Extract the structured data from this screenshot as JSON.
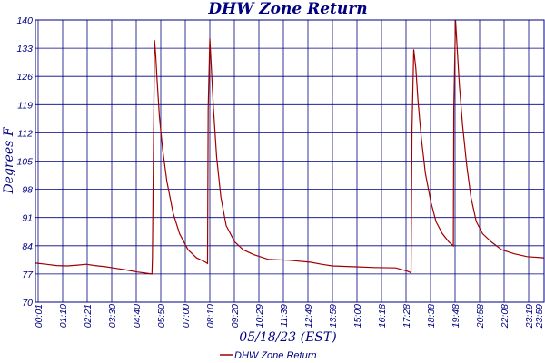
{
  "chart_data": {
    "type": "line",
    "title": "DHW Zone Return",
    "xlabel": "05/18/23 (EST)",
    "ylabel": "Degrees F",
    "ylim": [
      70,
      140
    ],
    "y_ticks": [
      70,
      77,
      84,
      91,
      98,
      105,
      112,
      119,
      126,
      133,
      140
    ],
    "x_tick_labels": [
      "00:01",
      "01:10",
      "02:21",
      "03:30",
      "04:40",
      "05:50",
      "07:00",
      "08:10",
      "09:20",
      "10:29",
      "11:39",
      "12:49",
      "13:59",
      "15:00",
      "16:18",
      "17:28",
      "18:38",
      "19:48",
      "20:58",
      "22:08",
      "23:19",
      "23:59"
    ],
    "grid": true,
    "legend_position": "bottom-center",
    "colors": {
      "series": "#a00000",
      "grid": "#000080",
      "text": "#000080"
    },
    "series": [
      {
        "name": "DHW Zone Return",
        "points": [
          [
            0.0,
            79.7
          ],
          [
            0.5,
            79.4
          ],
          [
            1.0,
            79.1
          ],
          [
            1.5,
            79.0
          ],
          [
            2.0,
            79.2
          ],
          [
            2.4,
            79.4
          ],
          [
            2.8,
            79.1
          ],
          [
            3.3,
            78.8
          ],
          [
            3.8,
            78.4
          ],
          [
            4.3,
            78.0
          ],
          [
            4.8,
            77.5
          ],
          [
            5.5,
            77.0
          ],
          [
            5.52,
            81.0
          ],
          [
            5.62,
            135.0
          ],
          [
            5.68,
            131.0
          ],
          [
            5.73,
            126.0
          ],
          [
            5.85,
            116.0
          ],
          [
            6.0,
            108.0
          ],
          [
            6.2,
            100.0
          ],
          [
            6.5,
            92.0
          ],
          [
            6.8,
            87.0
          ],
          [
            7.2,
            83.0
          ],
          [
            7.6,
            81.0
          ],
          [
            8.0,
            80.0
          ],
          [
            8.12,
            79.6
          ],
          [
            8.15,
            118.0
          ],
          [
            8.23,
            135.4
          ],
          [
            8.3,
            128.0
          ],
          [
            8.4,
            118.0
          ],
          [
            8.55,
            106.0
          ],
          [
            8.75,
            96.0
          ],
          [
            9.0,
            89.0
          ],
          [
            9.4,
            85.0
          ],
          [
            9.8,
            83.0
          ],
          [
            10.3,
            81.8
          ],
          [
            11.0,
            80.6
          ],
          [
            12.0,
            80.4
          ],
          [
            13.0,
            79.9
          ],
          [
            13.5,
            79.4
          ],
          [
            14.0,
            79.0
          ],
          [
            15.0,
            78.8
          ],
          [
            16.0,
            78.6
          ],
          [
            17.0,
            78.5
          ],
          [
            17.55,
            77.7
          ],
          [
            17.72,
            77.3
          ],
          [
            17.77,
            113.0
          ],
          [
            17.85,
            132.7
          ],
          [
            17.95,
            128.0
          ],
          [
            18.05,
            120.0
          ],
          [
            18.2,
            111.0
          ],
          [
            18.4,
            102.0
          ],
          [
            18.65,
            95.0
          ],
          [
            18.9,
            90.0
          ],
          [
            19.2,
            87.0
          ],
          [
            19.5,
            85.0
          ],
          [
            19.72,
            84.0
          ],
          [
            19.74,
            118.0
          ],
          [
            19.82,
            140.0
          ],
          [
            19.9,
            133.0
          ],
          [
            20.0,
            124.0
          ],
          [
            20.15,
            114.0
          ],
          [
            20.35,
            104.0
          ],
          [
            20.55,
            96.0
          ],
          [
            20.8,
            90.0
          ],
          [
            21.1,
            87.0
          ],
          [
            21.5,
            85.0
          ],
          [
            22.0,
            83.0
          ],
          [
            22.6,
            82.0
          ],
          [
            23.2,
            81.3
          ],
          [
            23.98,
            81.0
          ]
        ]
      }
    ]
  },
  "legend": {
    "label": "DHW Zone Return"
  }
}
